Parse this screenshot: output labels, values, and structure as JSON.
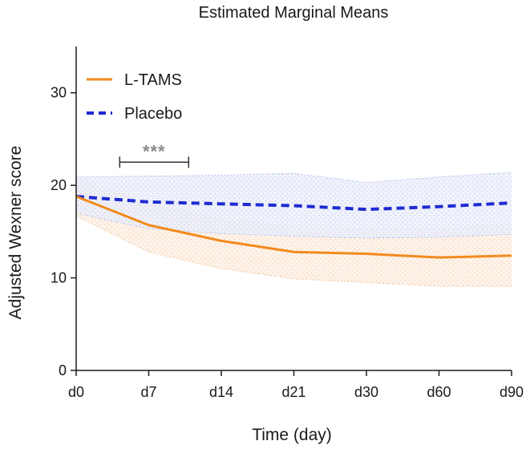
{
  "colors": {
    "ltams": "#f28a1d",
    "placebo": "#1f2bd1",
    "ltams_band": "#f6c8a2",
    "placebo_band": "#b9c4ee",
    "significance": "#8a8a8a"
  },
  "chart_data": {
    "type": "line",
    "title": "Estimated Marginal Means",
    "xlabel": "Time (day)",
    "ylabel": "Adjusted Wexner score",
    "categories": [
      "d0",
      "d7",
      "d14",
      "d21",
      "d30",
      "d60",
      "d90"
    ],
    "ylim": [
      0,
      35
    ],
    "yticks": [
      0,
      10,
      20,
      30
    ],
    "grid": false,
    "legend_position": "top-left",
    "series": [
      {
        "name": "L-TAMS",
        "line_style": "solid",
        "color_key": "ltams",
        "values": [
          18.8,
          15.7,
          14.0,
          12.8,
          12.6,
          12.2,
          12.4
        ],
        "ci_lower": [
          16.7,
          12.8,
          11.0,
          9.9,
          9.5,
          9.1,
          9.1
        ],
        "ci_upper": [
          20.8,
          18.0,
          16.5,
          15.5,
          15.3,
          15.3,
          15.8
        ]
      },
      {
        "name": "Placebo",
        "line_style": "dashed",
        "color_key": "placebo",
        "values": [
          18.8,
          18.2,
          18.0,
          17.8,
          17.4,
          17.7,
          18.1
        ],
        "ci_lower": [
          17.0,
          15.3,
          14.8,
          14.5,
          14.3,
          14.4,
          14.7
        ],
        "ci_upper": [
          20.9,
          21.0,
          21.1,
          21.3,
          20.3,
          20.9,
          21.4
        ]
      }
    ],
    "annotations": [
      {
        "text": "***",
        "from_category": "d7",
        "span": [
          -0.4,
          0.55
        ],
        "y": 22.5
      }
    ]
  }
}
